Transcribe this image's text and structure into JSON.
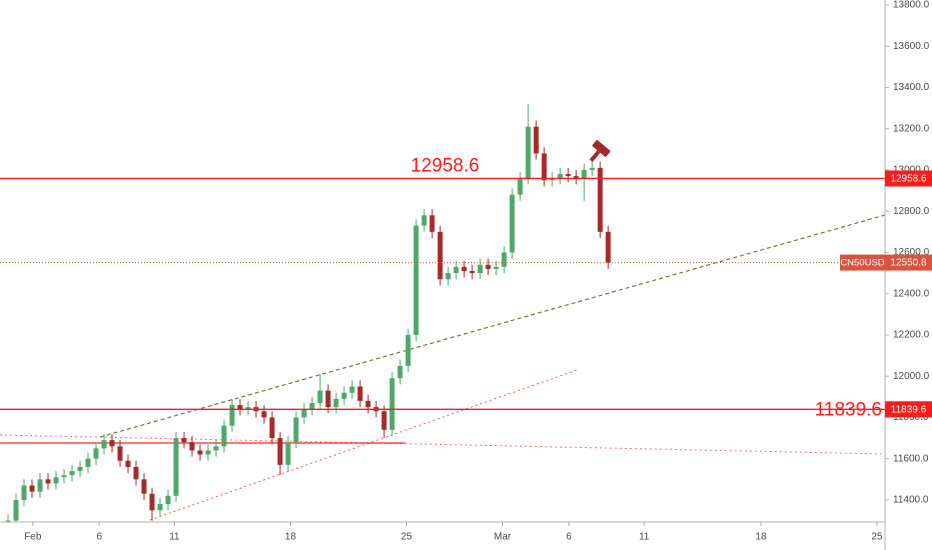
{
  "chart_data": {
    "type": "candlestick",
    "symbol": "CN50USD",
    "x": [
      1,
      2,
      3,
      4,
      5,
      6,
      7,
      8,
      9,
      10,
      11,
      12,
      13,
      14,
      15,
      16,
      17,
      18,
      19,
      20,
      21,
      22,
      23,
      24,
      25,
      26,
      27,
      28,
      29,
      30,
      31,
      32,
      33,
      34,
      35,
      36,
      37,
      38,
      39,
      40,
      41,
      42,
      43,
      44,
      45,
      46,
      47,
      48,
      49,
      50,
      51,
      52,
      53,
      54,
      55,
      56,
      57,
      58,
      59,
      60,
      61,
      62,
      63,
      64,
      65,
      66,
      67,
      68,
      69,
      70,
      71,
      72,
      73,
      74,
      75,
      76
    ],
    "opens": [
      11280,
      11300,
      11400,
      11470,
      11440,
      11500,
      11480,
      11510,
      11520,
      11540,
      11560,
      11600,
      11650,
      11690,
      11660,
      11590,
      11560,
      11500,
      11430,
      11350,
      11380,
      11420,
      11700,
      11680,
      11640,
      11620,
      11640,
      11660,
      11760,
      11860,
      11840,
      11850,
      11830,
      11800,
      11700,
      11570,
      11680,
      11800,
      11840,
      11870,
      11930,
      11850,
      11890,
      11920,
      11950,
      11880,
      11850,
      11830,
      11740,
      11990,
      12050,
      12200,
      12730,
      12780,
      12700,
      12470,
      12500,
      12530,
      12510,
      12500,
      12540,
      12520,
      12530,
      12600,
      12880,
      12960,
      13210,
      13080,
      12950,
      12960,
      12980,
      12970,
      12960,
      13000,
      13010,
      12700
    ],
    "highs": [
      11330,
      11430,
      11500,
      11500,
      11530,
      11530,
      11540,
      11550,
      11570,
      11590,
      11630,
      11680,
      11720,
      11720,
      11690,
      11620,
      11590,
      11530,
      11460,
      11410,
      11450,
      11730,
      11730,
      11710,
      11670,
      11670,
      11690,
      11790,
      11890,
      11890,
      11880,
      11880,
      11860,
      11830,
      11730,
      11710,
      11830,
      11870,
      11900,
      12010,
      11960,
      11920,
      11950,
      11980,
      11980,
      11910,
      11880,
      11860,
      12020,
      12080,
      12230,
      12760,
      12810,
      12810,
      12730,
      12530,
      12560,
      12560,
      12540,
      12570,
      12570,
      12560,
      12630,
      12910,
      12990,
      13320,
      13240,
      13110,
      12990,
      13010,
      13010,
      13000,
      13030,
      13040,
      13040,
      12730
    ],
    "lows": [
      11260,
      11270,
      11370,
      11410,
      11410,
      11450,
      11450,
      11480,
      11490,
      11510,
      11530,
      11570,
      11620,
      11630,
      11560,
      11530,
      11470,
      11400,
      11300,
      11320,
      11350,
      11390,
      11650,
      11610,
      11590,
      11590,
      11610,
      11630,
      11730,
      11810,
      11810,
      11800,
      11770,
      11670,
      11520,
      11540,
      11650,
      11770,
      11810,
      11840,
      11820,
      11820,
      11860,
      11890,
      11850,
      11820,
      11800,
      11700,
      11710,
      11960,
      12020,
      12170,
      12700,
      12670,
      12440,
      12440,
      12470,
      12480,
      12470,
      12470,
      12490,
      12490,
      12500,
      12570,
      12850,
      12930,
      13050,
      12920,
      12920,
      12930,
      12940,
      12930,
      12850,
      12970,
      12670,
      12520
    ],
    "closes": [
      11300,
      11400,
      11470,
      11440,
      11500,
      11480,
      11510,
      11520,
      11540,
      11560,
      11600,
      11650,
      11690,
      11660,
      11590,
      11560,
      11500,
      11430,
      11350,
      11380,
      11420,
      11700,
      11680,
      11640,
      11620,
      11640,
      11660,
      11760,
      11860,
      11840,
      11850,
      11830,
      11800,
      11700,
      11570,
      11680,
      11800,
      11840,
      11870,
      11930,
      11850,
      11890,
      11920,
      11950,
      11880,
      11850,
      11830,
      11740,
      11990,
      12050,
      12200,
      12730,
      12780,
      12700,
      12470,
      12500,
      12530,
      12510,
      12500,
      12540,
      12520,
      12530,
      12600,
      12880,
      12960,
      13210,
      13080,
      12950,
      12960,
      12980,
      12970,
      12960,
      13000,
      13010,
      12700,
      12550.8
    ],
    "up_color": "#4fa86a",
    "down_color": "#a52a2a",
    "xlim": [
      0,
      110.6
    ],
    "xticks": [
      {
        "value": 4.1,
        "label": "Feb"
      },
      {
        "value": 12.4,
        "label": "6"
      },
      {
        "value": 21.8,
        "label": "11"
      },
      {
        "value": 36.3,
        "label": "18"
      },
      {
        "value": 50.8,
        "label": "25"
      },
      {
        "value": 62.8,
        "label": "Mar"
      },
      {
        "value": 71.1,
        "label": "6"
      },
      {
        "value": 80.5,
        "label": "11"
      },
      {
        "value": 95.1,
        "label": "18"
      },
      {
        "value": 109.6,
        "label": "25"
      }
    ],
    "ylim": [
      11293,
      13824
    ],
    "yticks": [
      {
        "value": 11400,
        "label": "11400.0"
      },
      {
        "value": 11600,
        "label": "11600.0"
      },
      {
        "value": 11800,
        "label": "11800.0"
      },
      {
        "value": 12000,
        "label": "12000.0"
      },
      {
        "value": 12200,
        "label": "12200.0"
      },
      {
        "value": 12400,
        "label": "12400.0"
      },
      {
        "value": 12600,
        "label": "12600.0"
      },
      {
        "value": 12800,
        "label": "12800.0"
      },
      {
        "value": 13000,
        "label": "13000.0"
      },
      {
        "value": 13200,
        "label": "13200.0"
      },
      {
        "value": 13400,
        "label": "13400.0"
      },
      {
        "value": 13600,
        "label": "13600.0"
      },
      {
        "value": 13800,
        "label": "13800.0"
      }
    ],
    "levels": [
      {
        "value": 12958.6,
        "color": "#ff1a1a"
      },
      {
        "value": 11839.6,
        "color": "#ff1a1a"
      }
    ],
    "last_price": 12550.8,
    "last_price_color": "#d9533f"
  }
}
